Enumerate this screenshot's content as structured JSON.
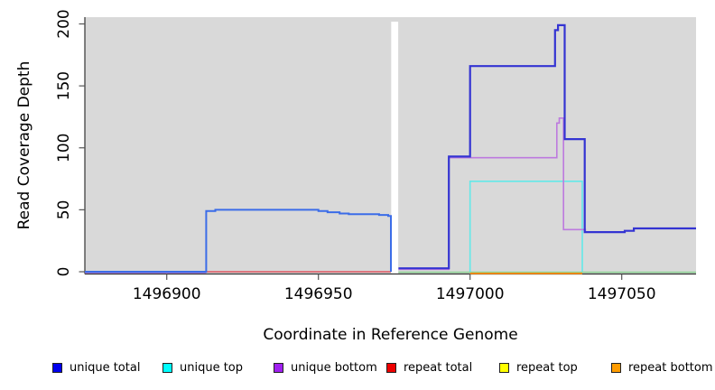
{
  "chart_data": {
    "type": "line",
    "title": "",
    "xlabel": "Coordinate in Reference Genome",
    "ylabel": "Read Coverage Depth",
    "xlim": [
      1496873,
      1497074.5
    ],
    "ylim": [
      0,
      200
    ],
    "x_ticks": [
      {
        "value": 1496900,
        "label": "1496900"
      },
      {
        "value": 1496950,
        "label": "1496950"
      },
      {
        "value": 1497000,
        "label": "1497000"
      },
      {
        "value": 1497050,
        "label": "1497050"
      }
    ],
    "y_ticks": [
      {
        "value": 0,
        "label": "0"
      },
      {
        "value": 50,
        "label": "50"
      },
      {
        "value": 100,
        "label": "100"
      },
      {
        "value": 150,
        "label": "150"
      },
      {
        "value": 200,
        "label": "200"
      }
    ],
    "plot_bg": "#d9d9d9",
    "gap_region": {
      "x0": 1496974.0,
      "x1": 1496976.3,
      "note": "white no-data band"
    },
    "grid": "off",
    "legend_position": "bottom",
    "series": [
      {
        "name": "repeat total",
        "color": "#e05560",
        "width": 1.6,
        "points": [
          [
            1496913,
            0
          ],
          [
            1496973.9,
            0
          ]
        ]
      },
      {
        "name": "repeat top (overlapping unique top baseline)",
        "color": "#8ed495",
        "width": 1.5,
        "points": [
          [
            1496976.4,
            -0.4
          ],
          [
            1497074.5,
            -0.4
          ]
        ]
      },
      {
        "name": "repeat bottom",
        "color": "#ff9012",
        "width": 1.8,
        "points": [
          [
            1497000,
            -1.4
          ],
          [
            1497037,
            -1.4
          ]
        ]
      },
      {
        "name": "unique bottom pre-gap baseline",
        "color": "#9d6ae0",
        "width": 1.6,
        "points": [
          [
            1496873,
            -0.7
          ],
          [
            1496913,
            -0.7
          ]
        ]
      },
      {
        "name": "unique top",
        "color": "#63e9e9",
        "width": 1.6,
        "points": [
          [
            1497000,
            0
          ],
          [
            1497000,
            73
          ],
          [
            1497037,
            73
          ],
          [
            1497037,
            0
          ]
        ]
      },
      {
        "name": "unique bottom",
        "color": "#bd7ade",
        "width": 1.6,
        "points": [
          [
            1496976.4,
            2
          ],
          [
            1496993,
            2
          ],
          [
            1496993,
            92
          ],
          [
            1497028.6,
            92
          ],
          [
            1497028.6,
            120
          ],
          [
            1497029.4,
            120
          ],
          [
            1497029.4,
            124
          ],
          [
            1497030.8,
            124
          ],
          [
            1497030.8,
            34
          ],
          [
            1497038,
            34
          ],
          [
            1497038,
            32
          ],
          [
            1497051,
            32
          ],
          [
            1497051,
            33
          ],
          [
            1497054,
            33
          ],
          [
            1497054,
            35
          ],
          [
            1497074.5,
            35
          ]
        ]
      },
      {
        "name": "unique total pre-gap",
        "color": "#3b6ce8",
        "width": 2,
        "points": [
          [
            1496873,
            0
          ],
          [
            1496913,
            0
          ],
          [
            1496913,
            49
          ],
          [
            1496916,
            49
          ],
          [
            1496916,
            50
          ],
          [
            1496950,
            50
          ],
          [
            1496950,
            49
          ],
          [
            1496953,
            49
          ],
          [
            1496953,
            48
          ],
          [
            1496957,
            48
          ],
          [
            1496957,
            47
          ],
          [
            1496960,
            47
          ],
          [
            1496960,
            46.5
          ],
          [
            1496970,
            46.5
          ],
          [
            1496970,
            45.8
          ],
          [
            1496973,
            45.8
          ],
          [
            1496973,
            45
          ],
          [
            1496973.9,
            45
          ],
          [
            1496973.9,
            0
          ]
        ]
      },
      {
        "name": "unique total",
        "color": "#3434d2",
        "width": 2.2,
        "points": [
          [
            1496976.4,
            2.8
          ],
          [
            1496993,
            2.8
          ],
          [
            1496993,
            93
          ],
          [
            1497000,
            93
          ],
          [
            1497000,
            166
          ],
          [
            1497028,
            166
          ],
          [
            1497028,
            195
          ],
          [
            1497029,
            195
          ],
          [
            1497029,
            199
          ],
          [
            1497031.2,
            199
          ],
          [
            1497031.2,
            107
          ],
          [
            1497037.8,
            107
          ],
          [
            1497037.8,
            32
          ],
          [
            1497051,
            32
          ],
          [
            1497051,
            33
          ],
          [
            1497054,
            33
          ],
          [
            1497054,
            35
          ],
          [
            1497074.5,
            35
          ]
        ]
      }
    ],
    "legend": [
      {
        "label": "unique total",
        "color": "#0000ee",
        "x": 58
      },
      {
        "label": "unique top",
        "color": "#00ffff",
        "x": 180
      },
      {
        "label": "unique bottom",
        "color": "#a020f0",
        "x": 303
      },
      {
        "label": "repeat total",
        "color": "#ee0000",
        "x": 428
      },
      {
        "label": "repeat top",
        "color": "#ffff00",
        "x": 553
      },
      {
        "label": "repeat bottom",
        "color": "#ff9c00",
        "x": 677
      }
    ]
  }
}
